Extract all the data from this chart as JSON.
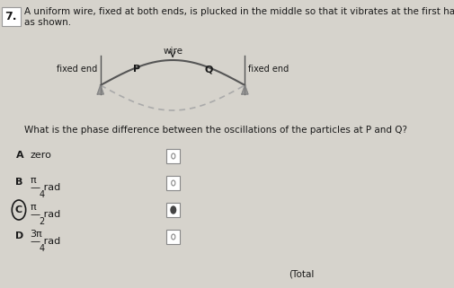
{
  "question_number": "7.",
  "question_text": "A uniform wire, fixed at both ends, is plucked in the middle so that it vibrates at the first harmonic\nas shown.",
  "wire_label": "wire",
  "fixed_end_label": "fixed end",
  "p_label": "P",
  "q_label": "Q",
  "question2": "What is the phase difference between the oscillations of the particles at P and Q?",
  "options": [
    {
      "letter": "A",
      "text": "zero"
    },
    {
      "letter": "B",
      "text": "π\n— rad\n4"
    },
    {
      "letter": "C",
      "text": "π\n— rad\n2"
    },
    {
      "letter": "D",
      "text": "3π\n— rad\n4"
    }
  ],
  "answered": "C",
  "bg_color": "#d6d3cc",
  "text_color": "#1a1a1a",
  "box_color": "#ffffff",
  "wire_color": "#555555",
  "dashed_color": "#aaaaaa",
  "triangle_color": "#888888",
  "total_text": "(Total"
}
